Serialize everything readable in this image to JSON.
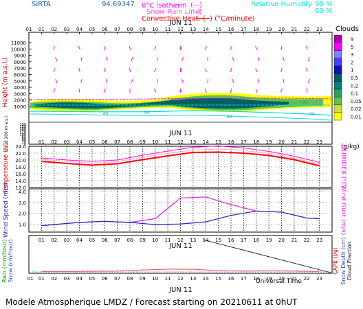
{
  "header": {
    "station": "SIRTA",
    "station_code": "94.69347",
    "zero_label": "0",
    "legend": {
      "isotherm": "0°C isotherm",
      "isotherm_sample": "(---)",
      "snow_rain": "Snow-Rain Limit",
      "snow_rain_sample": "(---)",
      "convective": "Convective Heat. (",
      "convective_unit": ") (°C/minute)",
      "rh_label": "Relative Humidity",
      "rh_high": "90 %",
      "rh_low": "60 %"
    },
    "colors": {
      "isotherm": "#ff00ff",
      "snow_rain": "#ff55ff",
      "convective": "#ff0000",
      "rh": "#00dddd"
    }
  },
  "footer": {
    "title": "Modele Atmospherique LMDZ / Forecast starting on 20210611 at 0hUT",
    "universal_time": "Universal Time"
  },
  "chart_data": [
    {
      "type": "heatmap",
      "panel": "clouds",
      "title": "JUN 11",
      "ylabel": "Height (m a.s.l.)",
      "ylabel2": "Up to 200 m a.s.l.",
      "x_ticks": [
        "01",
        "02",
        "03",
        "04",
        "05",
        "06",
        "07",
        "08",
        "09",
        "10",
        "11",
        "12",
        "13",
        "14",
        "15",
        "16",
        "17",
        "18",
        "19",
        "20",
        "21",
        "22",
        "23"
      ],
      "y_ticks_upper": [
        "11000",
        "10000",
        "9000",
        "8000",
        "7000",
        "6000",
        "5000",
        "4000",
        "3000",
        "2000",
        "1000"
      ],
      "y_ticks_lower": [
        "200",
        "180",
        "160",
        "140",
        "120",
        "100",
        "80",
        "60",
        "40",
        "20",
        "0"
      ],
      "colorbar_title": "Clouds",
      "colorbar_unit": "(g/kg)",
      "colorbar_ticks": [
        "9",
        "5",
        "3",
        "2",
        "1",
        "0.5",
        "0.2",
        "0.1",
        "0.05",
        "0.02",
        "0.01"
      ],
      "colorbar_colors": [
        "#b000b0",
        "#ff00ff",
        "#8080ff",
        "#4040ff",
        "#1010c0",
        "#006060",
        "#008080",
        "#30a060",
        "#60c050",
        "#c8e040",
        "#ffff00"
      ],
      "rh_labels": [
        "60",
        "90",
        "60",
        "90",
        "90",
        "90"
      ],
      "isotherm_m": 2700
    },
    {
      "type": "line",
      "panel": "temperature",
      "title": "JUN 11",
      "ylabel": "Temperature (°C)",
      "ylabel2": "HUMIDEX (°C)",
      "y_ticks": [
        "24.0",
        "22.0",
        "20.0",
        "18.0",
        "16.0",
        "14.0",
        "12.0"
      ],
      "ylim": [
        12,
        24
      ],
      "x": [
        1,
        3,
        5,
        7,
        9,
        11,
        13,
        15,
        17,
        19,
        21,
        23
      ],
      "series": [
        {
          "color": "#ff0000",
          "values": [
            19.6,
            19.0,
            18.5,
            18.9,
            20.1,
            21.2,
            22.2,
            22.3,
            22.0,
            21.3,
            20.1,
            18.3
          ]
        },
        {
          "color": "#ff00ff",
          "values": [
            20.6,
            20.0,
            19.6,
            20.0,
            21.4,
            22.6,
            23.7,
            24.1,
            23.5,
            22.5,
            21.1,
            19.3
          ]
        },
        {
          "color": "#ffaaaa",
          "values": [
            20.2,
            19.6,
            19.1,
            19.5,
            20.8,
            21.9,
            22.9,
            23.2,
            22.8,
            21.9,
            20.6,
            18.8
          ]
        }
      ]
    },
    {
      "type": "line",
      "panel": "wind",
      "ylabel": "Wind Speed (m/s)",
      "ylabel2": "Wind Gust (m/s)",
      "y_ticks": [
        "4.0",
        "3.0",
        "2.0",
        "1.0"
      ],
      "ylim": [
        0,
        4
      ],
      "x": [
        1,
        4,
        6,
        8,
        10,
        12,
        14,
        16,
        18,
        20,
        22,
        23
      ],
      "series": [
        {
          "color": "#2222cc",
          "values": [
            0.85,
            1.15,
            1.25,
            1.15,
            0.95,
            1.0,
            1.2,
            1.8,
            2.2,
            2.1,
            1.55,
            1.5
          ]
        },
        {
          "color": "#dd22dd",
          "values": [
            0.85,
            1.15,
            1.25,
            1.15,
            1.5,
            3.4,
            3.5,
            2.8,
            2.2,
            2.1,
            1.55,
            1.5
          ]
        }
      ]
    },
    {
      "type": "line",
      "panel": "precip",
      "title": "JUN 11",
      "ylabel": "Rain (mm/hour)",
      "ylabel_snow": "Snow (cm/hour)",
      "ylabel2": "CAPE (J/g)",
      "ylabel3": "Snow Depth (cm)",
      "ylabel4": "Cloud Fraction",
      "x_ticks": [
        "01",
        "02",
        "03",
        "04",
        "05",
        "06",
        "07",
        "08",
        "09",
        "10",
        "11",
        "12",
        "13",
        "14",
        "15",
        "16",
        "17",
        "18",
        "19",
        "20",
        "21",
        "22",
        "23"
      ],
      "tick_prefix": "0",
      "x": [
        1,
        3,
        5,
        7,
        9,
        11,
        13,
        15,
        17,
        19,
        21,
        23
      ],
      "series": [
        {
          "color": "#ff4444",
          "values": [
            0.05,
            0.05,
            0.06,
            0.08,
            0.18,
            0.25,
            0.24,
            0.12,
            0.08,
            0.1,
            0.08,
            0.05
          ]
        }
      ]
    }
  ]
}
